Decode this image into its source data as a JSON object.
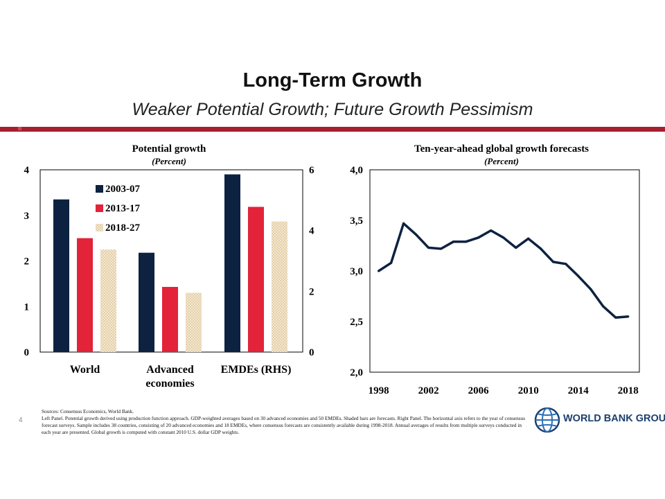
{
  "slide": {
    "title": "Long-Term Growth",
    "subtitle": "Weaker Potential Growth; Future Growth Pessimism",
    "page_number": "4",
    "logo_text": "WORLD BANK GROUP",
    "accent_color": "#a6202e"
  },
  "notes": {
    "sources": "Sources: Consensus Economics, World Bank.",
    "body": "Left Panel. Potential growth derived using production function approach. GDP-weighted averages based on 30 advanced economies and 50 EMDEs. Shaded bars are forecasts. Right Panel. The horizontal axis refers to the year of consensus forecast surveys. Sample includes 38 countries, consisting of 20 advanced economies and 18 EMDEs, where consensus forecasts are consistently available during 1998-2018. Annual averages of results from multiple surveys conducted in each year are presented. Global growth is computed with constant 2010 U.S. dollar GDP weights."
  },
  "chart_data": [
    {
      "type": "bar",
      "title": "Potential growth",
      "subtitle": "(Percent)",
      "categories": [
        "World",
        "Advanced economies",
        "EMDEs (RHS)"
      ],
      "category_lines": [
        [
          "World"
        ],
        [
          "Advanced",
          "economies"
        ],
        [
          "EMDEs (RHS)"
        ]
      ],
      "axis_note": "EMDEs plotted on right axis (0-6)",
      "ylim": [
        0,
        4
      ],
      "yticks": [
        0,
        1,
        2,
        3,
        4
      ],
      "y2lim": [
        0,
        6
      ],
      "y2ticks": [
        0,
        2,
        4,
        6
      ],
      "series": [
        {
          "name": "2003-07",
          "color": "#0d2240",
          "values": [
            3.35,
            2.18,
            5.85
          ]
        },
        {
          "name": "2013-17",
          "color": "#e2233a",
          "values": [
            2.5,
            1.43,
            4.78
          ]
        },
        {
          "name": "2018-27",
          "color": "#ead6b4",
          "pattern": "shaded",
          "values": [
            2.25,
            1.3,
            4.3
          ]
        }
      ],
      "legend_position": "top-left"
    },
    {
      "type": "line",
      "title": "Ten-year-ahead global growth forecasts",
      "subtitle": "(Percent)",
      "x": [
        1998,
        1999,
        2000,
        2001,
        2002,
        2003,
        2004,
        2005,
        2006,
        2007,
        2008,
        2009,
        2010,
        2011,
        2012,
        2013,
        2014,
        2015,
        2016,
        2017,
        2018
      ],
      "y": [
        3.0,
        3.08,
        3.47,
        3.36,
        3.23,
        3.22,
        3.29,
        3.29,
        3.33,
        3.4,
        3.33,
        3.23,
        3.32,
        3.22,
        3.09,
        3.07,
        2.95,
        2.82,
        2.65,
        2.54,
        2.55
      ],
      "xticks": [
        1998,
        2002,
        2006,
        2010,
        2014,
        2018
      ],
      "ylim": [
        2.0,
        4.0
      ],
      "yticks": [
        "2,0",
        "2,5",
        "3,0",
        "3,5",
        "4,0"
      ],
      "line_color": "#0d2240",
      "grid": false
    }
  ]
}
